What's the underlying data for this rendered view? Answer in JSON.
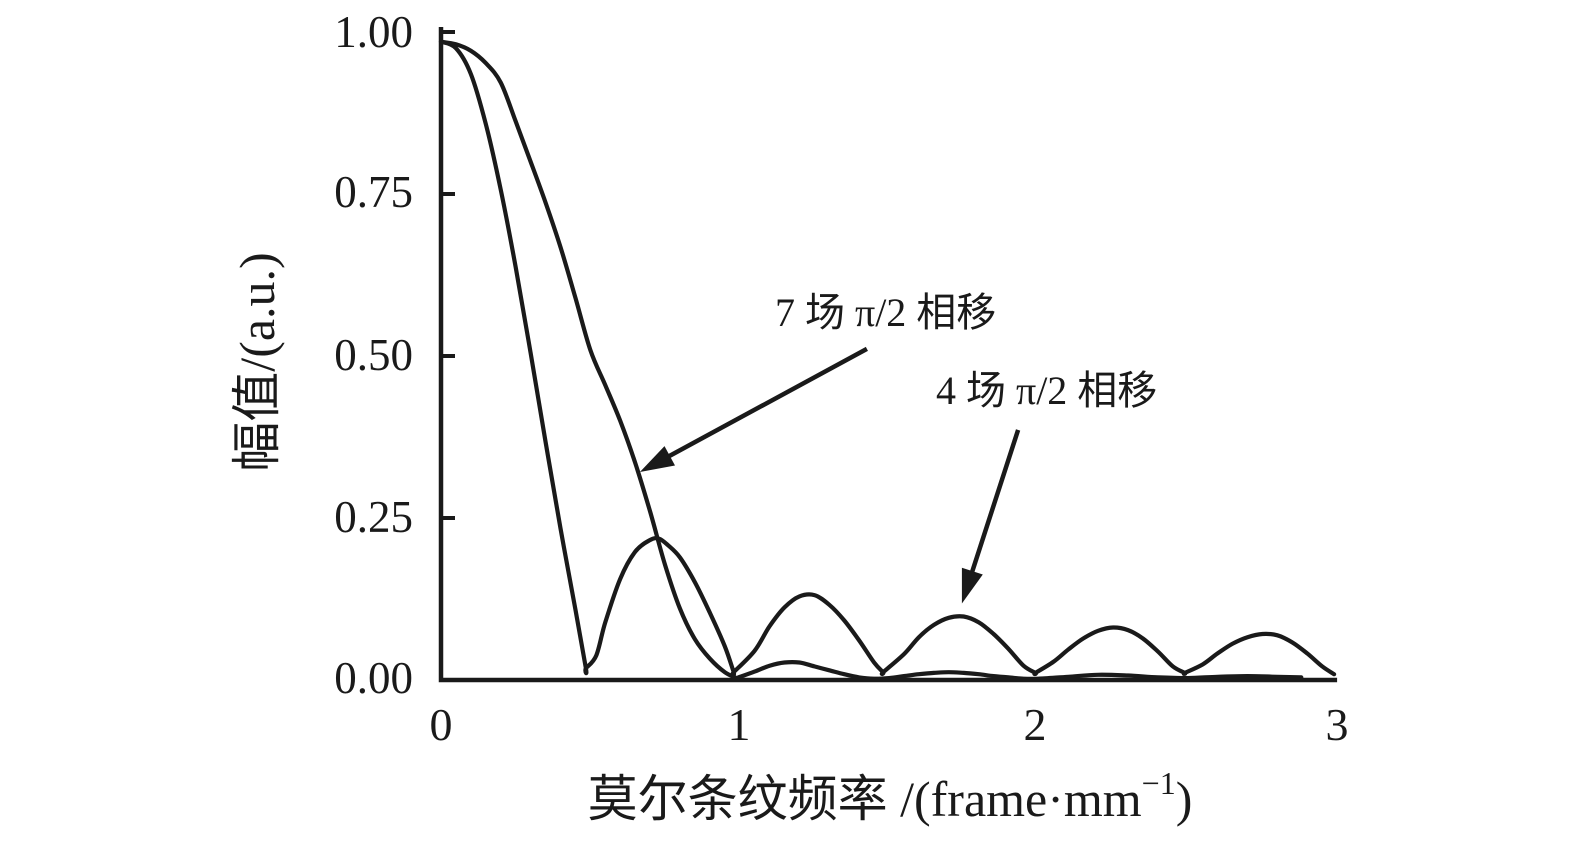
{
  "figure": {
    "background_color": "#ffffff",
    "line_color": "#1a1a1a"
  },
  "chart_data": {
    "type": "line",
    "title": "",
    "ylabel": "幅值/(a.u.)",
    "xlabel_parts": {
      "main": "莫尔条纹频率 /(frame·mm",
      "superscript": "−1",
      "suffix": ")"
    },
    "xlabel_full": "莫尔条纹频率 /(frame·mm−1)",
    "xlim": [
      0,
      3
    ],
    "ylim": [
      0,
      1
    ],
    "grid": false,
    "legend_position": "none",
    "x_ticks": [
      0,
      1,
      2,
      3
    ],
    "x_tick_labels": [
      "0",
      "1",
      "2",
      "3"
    ],
    "y_ticks": [
      1.0,
      0.75,
      0.5,
      0.25,
      0.0
    ],
    "y_tick_labels": [
      "1.00",
      "0.75",
      "0.50",
      "0.25",
      "0.00"
    ],
    "series": [
      {
        "name": "7 场 π/2 相移",
        "description": "broad main lobe, first zero at x=1, very small side lobes",
        "points": [
          [
            0,
            0.985
          ],
          [
            0.05,
            0.981
          ],
          [
            0.1,
            0.971
          ],
          [
            0.15,
            0.952
          ],
          [
            0.2,
            0.922
          ],
          [
            0.25,
            0.862
          ],
          [
            0.3,
            0.8
          ],
          [
            0.35,
            0.737
          ],
          [
            0.4,
            0.668
          ],
          [
            0.45,
            0.59
          ],
          [
            0.5,
            0.509
          ],
          [
            0.55,
            0.455
          ],
          [
            0.6,
            0.4
          ],
          [
            0.65,
            0.335
          ],
          [
            0.7,
            0.26
          ],
          [
            0.75,
            0.178
          ],
          [
            0.8,
            0.11
          ],
          [
            0.85,
            0.063
          ],
          [
            0.9,
            0.033
          ],
          [
            0.95,
            0.012
          ],
          [
            0.99,
            0.003
          ],
          [
            0.99,
            0.003
          ],
          [
            1.05,
            0.013
          ],
          [
            1.1,
            0.022
          ],
          [
            1.15,
            0.027
          ],
          [
            1.2,
            0.027
          ],
          [
            1.25,
            0.021
          ],
          [
            1.3,
            0.015
          ],
          [
            1.35,
            0.009
          ],
          [
            1.4,
            0.004
          ],
          [
            1.45,
            0.002
          ],
          [
            1.5,
            0.003
          ],
          [
            1.55,
            0.006
          ],
          [
            1.6,
            0.009
          ],
          [
            1.65,
            0.011
          ],
          [
            1.7,
            0.012
          ],
          [
            1.75,
            0.011
          ],
          [
            1.8,
            0.009
          ],
          [
            1.85,
            0.006
          ],
          [
            1.9,
            0.004
          ],
          [
            1.95,
            0.002
          ],
          [
            2.0,
            0.002
          ],
          [
            2.1,
            0.005
          ],
          [
            2.2,
            0.008
          ],
          [
            2.3,
            0.007
          ],
          [
            2.4,
            0.004
          ],
          [
            2.5,
            0.003
          ],
          [
            2.6,
            0.005
          ],
          [
            2.7,
            0.006
          ],
          [
            2.8,
            0.005
          ],
          [
            2.88,
            0.004
          ]
        ]
      },
      {
        "name": "4 场 π/2 相移",
        "description": "sinc-like response, zeros every 0.5, side-lobe peaks ~0.22, 0.13, 0.10, 0.08, 0.07",
        "points": [
          [
            0,
            0.985
          ],
          [
            0.05,
            0.975
          ],
          [
            0.1,
            0.935
          ],
          [
            0.15,
            0.858
          ],
          [
            0.2,
            0.757
          ],
          [
            0.25,
            0.637
          ],
          [
            0.3,
            0.505
          ],
          [
            0.35,
            0.368
          ],
          [
            0.4,
            0.234
          ],
          [
            0.45,
            0.109
          ],
          [
            0.485,
            0.018
          ],
          [
            0.485,
            0.018
          ],
          [
            0.52,
            0.038
          ],
          [
            0.55,
            0.089
          ],
          [
            0.6,
            0.156
          ],
          [
            0.65,
            0.198
          ],
          [
            0.7,
            0.216
          ],
          [
            0.73,
            0.218
          ],
          [
            0.76,
            0.208
          ],
          [
            0.8,
            0.189
          ],
          [
            0.85,
            0.151
          ],
          [
            0.9,
            0.104
          ],
          [
            0.95,
            0.052
          ],
          [
            0.98,
            0.012
          ],
          [
            0.98,
            0.012
          ],
          [
            1.05,
            0.045
          ],
          [
            1.1,
            0.083
          ],
          [
            1.15,
            0.112
          ],
          [
            1.2,
            0.129
          ],
          [
            1.25,
            0.131
          ],
          [
            1.3,
            0.116
          ],
          [
            1.35,
            0.092
          ],
          [
            1.4,
            0.061
          ],
          [
            1.45,
            0.027
          ],
          [
            1.48,
            0.012
          ],
          [
            1.48,
            0.012
          ],
          [
            1.55,
            0.04
          ],
          [
            1.6,
            0.066
          ],
          [
            1.65,
            0.085
          ],
          [
            1.7,
            0.096
          ],
          [
            1.75,
            0.098
          ],
          [
            1.8,
            0.089
          ],
          [
            1.85,
            0.071
          ],
          [
            1.9,
            0.048
          ],
          [
            1.95,
            0.022
          ],
          [
            1.99,
            0.011
          ],
          [
            1.99,
            0.011
          ],
          [
            2.05,
            0.028
          ],
          [
            2.1,
            0.047
          ],
          [
            2.15,
            0.064
          ],
          [
            2.2,
            0.076
          ],
          [
            2.25,
            0.081
          ],
          [
            2.3,
            0.077
          ],
          [
            2.35,
            0.064
          ],
          [
            2.4,
            0.044
          ],
          [
            2.45,
            0.021
          ],
          [
            2.49,
            0.011
          ],
          [
            2.49,
            0.011
          ],
          [
            2.55,
            0.024
          ],
          [
            2.6,
            0.041
          ],
          [
            2.65,
            0.056
          ],
          [
            2.7,
            0.066
          ],
          [
            2.75,
            0.071
          ],
          [
            2.8,
            0.069
          ],
          [
            2.85,
            0.058
          ],
          [
            2.9,
            0.041
          ],
          [
            2.95,
            0.021
          ],
          [
            2.99,
            0.009
          ]
        ]
      }
    ],
    "annotations": [
      {
        "text": "7 场 π/2 相移",
        "target_series": "7 场 π/2 相移",
        "arrow_from": [
          1.426,
          0.511
        ],
        "arrow_to": [
          0.666,
          0.321
        ]
      },
      {
        "text": "4 场 π/2 相移",
        "target_series": "4 场 π/2 相移",
        "arrow_from": [
          1.932,
          0.386
        ],
        "arrow_to": [
          1.744,
          0.118
        ]
      }
    ]
  }
}
